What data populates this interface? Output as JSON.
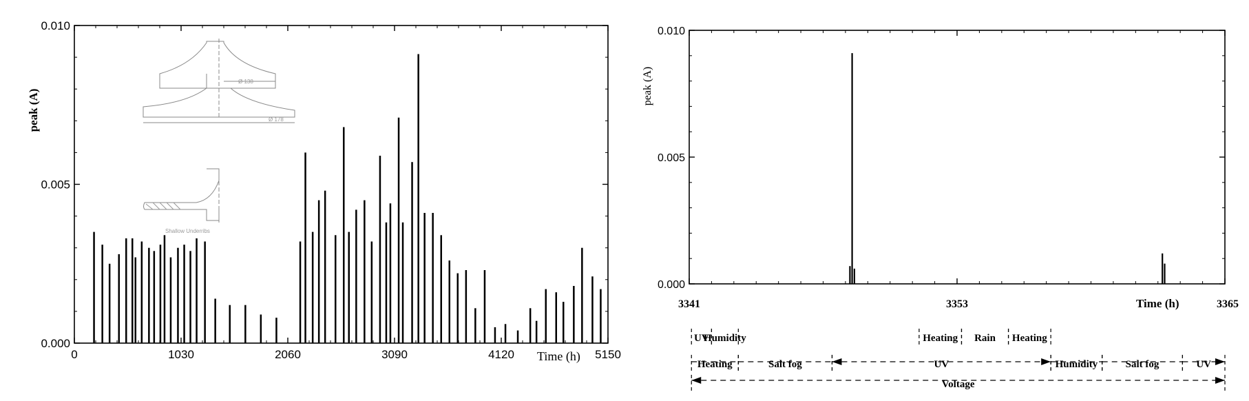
{
  "chart_data": [
    {
      "type": "bar",
      "title": "",
      "xlabel": "Time (h)",
      "ylabel": "peak (A)",
      "xlim": [
        0,
        5150
      ],
      "ylim": [
        0,
        0.01
      ],
      "x_ticks": [
        0,
        1030,
        2060,
        3090,
        4120,
        5150
      ],
      "x_tick_labels": [
        "0",
        "1030",
        "2060",
        "3090",
        "4120",
        "5150"
      ],
      "y_ticks": [
        0,
        0.005,
        0.01
      ],
      "y_tick_labels": [
        "0.000",
        "0.005",
        "0.010"
      ],
      "series": [
        {
          "x": [
            190,
            270,
            340,
            430,
            500,
            560,
            590,
            650,
            720,
            770,
            830,
            870,
            930,
            1000,
            1060,
            1120,
            1180,
            1260,
            1360,
            1500,
            1650,
            1800,
            1950,
            2180,
            2230,
            2300,
            2360,
            2420,
            2520,
            2600,
            2650,
            2720,
            2800,
            2870,
            2950,
            3010,
            3050,
            3130,
            3170,
            3260,
            3320,
            3380,
            3460,
            3540,
            3620,
            3700,
            3780,
            3870,
            3960,
            4060,
            4160,
            4280,
            4400,
            4460,
            4550,
            4650,
            4720,
            4820,
            4900,
            5000,
            5080
          ],
          "y": [
            0.0035,
            0.0031,
            0.0025,
            0.0028,
            0.0033,
            0.0033,
            0.0027,
            0.0032,
            0.003,
            0.0029,
            0.0031,
            0.0034,
            0.0027,
            0.003,
            0.0031,
            0.0029,
            0.0033,
            0.0032,
            0.0014,
            0.0012,
            0.0012,
            0.0009,
            0.0008,
            0.0032,
            0.006,
            0.0035,
            0.0045,
            0.0048,
            0.0034,
            0.0068,
            0.0035,
            0.0042,
            0.0045,
            0.0032,
            0.0059,
            0.0038,
            0.0044,
            0.0071,
            0.0038,
            0.0057,
            0.0091,
            0.0041,
            0.0041,
            0.0034,
            0.0026,
            0.0022,
            0.0023,
            0.0011,
            0.0023,
            0.0005,
            0.0006,
            0.0004,
            0.0011,
            0.0007,
            0.0017,
            0.0016,
            0.0013,
            0.0018,
            0.003,
            0.0021,
            0.0017
          ]
        }
      ],
      "inset_labels": [
        "Ø 138",
        "Ø 178",
        "Shallow Underribs"
      ]
    },
    {
      "type": "bar",
      "title": "",
      "xlabel": "Time (h)",
      "ylabel": "peak (A)",
      "xlim": [
        3341,
        3365
      ],
      "ylim": [
        0,
        0.01
      ],
      "x_ticks": [
        3341,
        3353,
        3365
      ],
      "x_tick_labels": [
        "3341",
        "3353",
        "3365"
      ],
      "y_ticks": [
        0,
        0.005,
        0.01
      ],
      "y_tick_labels": [
        "0.000",
        "0.005",
        "0.010"
      ],
      "series": [
        {
          "x": [
            3348.2,
            3348.3,
            3348.4,
            3362.2,
            3362.3
          ],
          "y": [
            0.0007,
            0.0091,
            0.0006,
            0.0012,
            0.0008
          ]
        }
      ],
      "cycle_rows": [
        {
          "segments": [
            {
              "label": "UV",
              "from": 3341.1,
              "to": 3342.0
            },
            {
              "label": "Humidity",
              "from": 3342.0,
              "to": 3343.2
            },
            {
              "label": "Heating",
              "from": 3351.3,
              "to": 3353.2
            },
            {
              "label": "Rain",
              "from": 3353.2,
              "to": 3355.3
            },
            {
              "label": "Heating",
              "from": 3355.3,
              "to": 3357.2
            }
          ]
        },
        {
          "segments": [
            {
              "label": "Heating",
              "from": 3341.1,
              "to": 3343.2
            },
            {
              "label": "Salt fog",
              "from": 3343.2,
              "to": 3347.4
            },
            {
              "label": "UV",
              "from": 3347.4,
              "to": 3357.2
            },
            {
              "label": "Humidity",
              "from": 3357.2,
              "to": 3359.5
            },
            {
              "label": "Salt fog",
              "from": 3359.5,
              "to": 3363.1
            },
            {
              "label": "UV",
              "from": 3363.1,
              "to": 3365.0
            }
          ]
        },
        {
          "segments": [
            {
              "label": "Voltage",
              "from": 3341.1,
              "to": 3365.0
            }
          ]
        }
      ]
    }
  ]
}
